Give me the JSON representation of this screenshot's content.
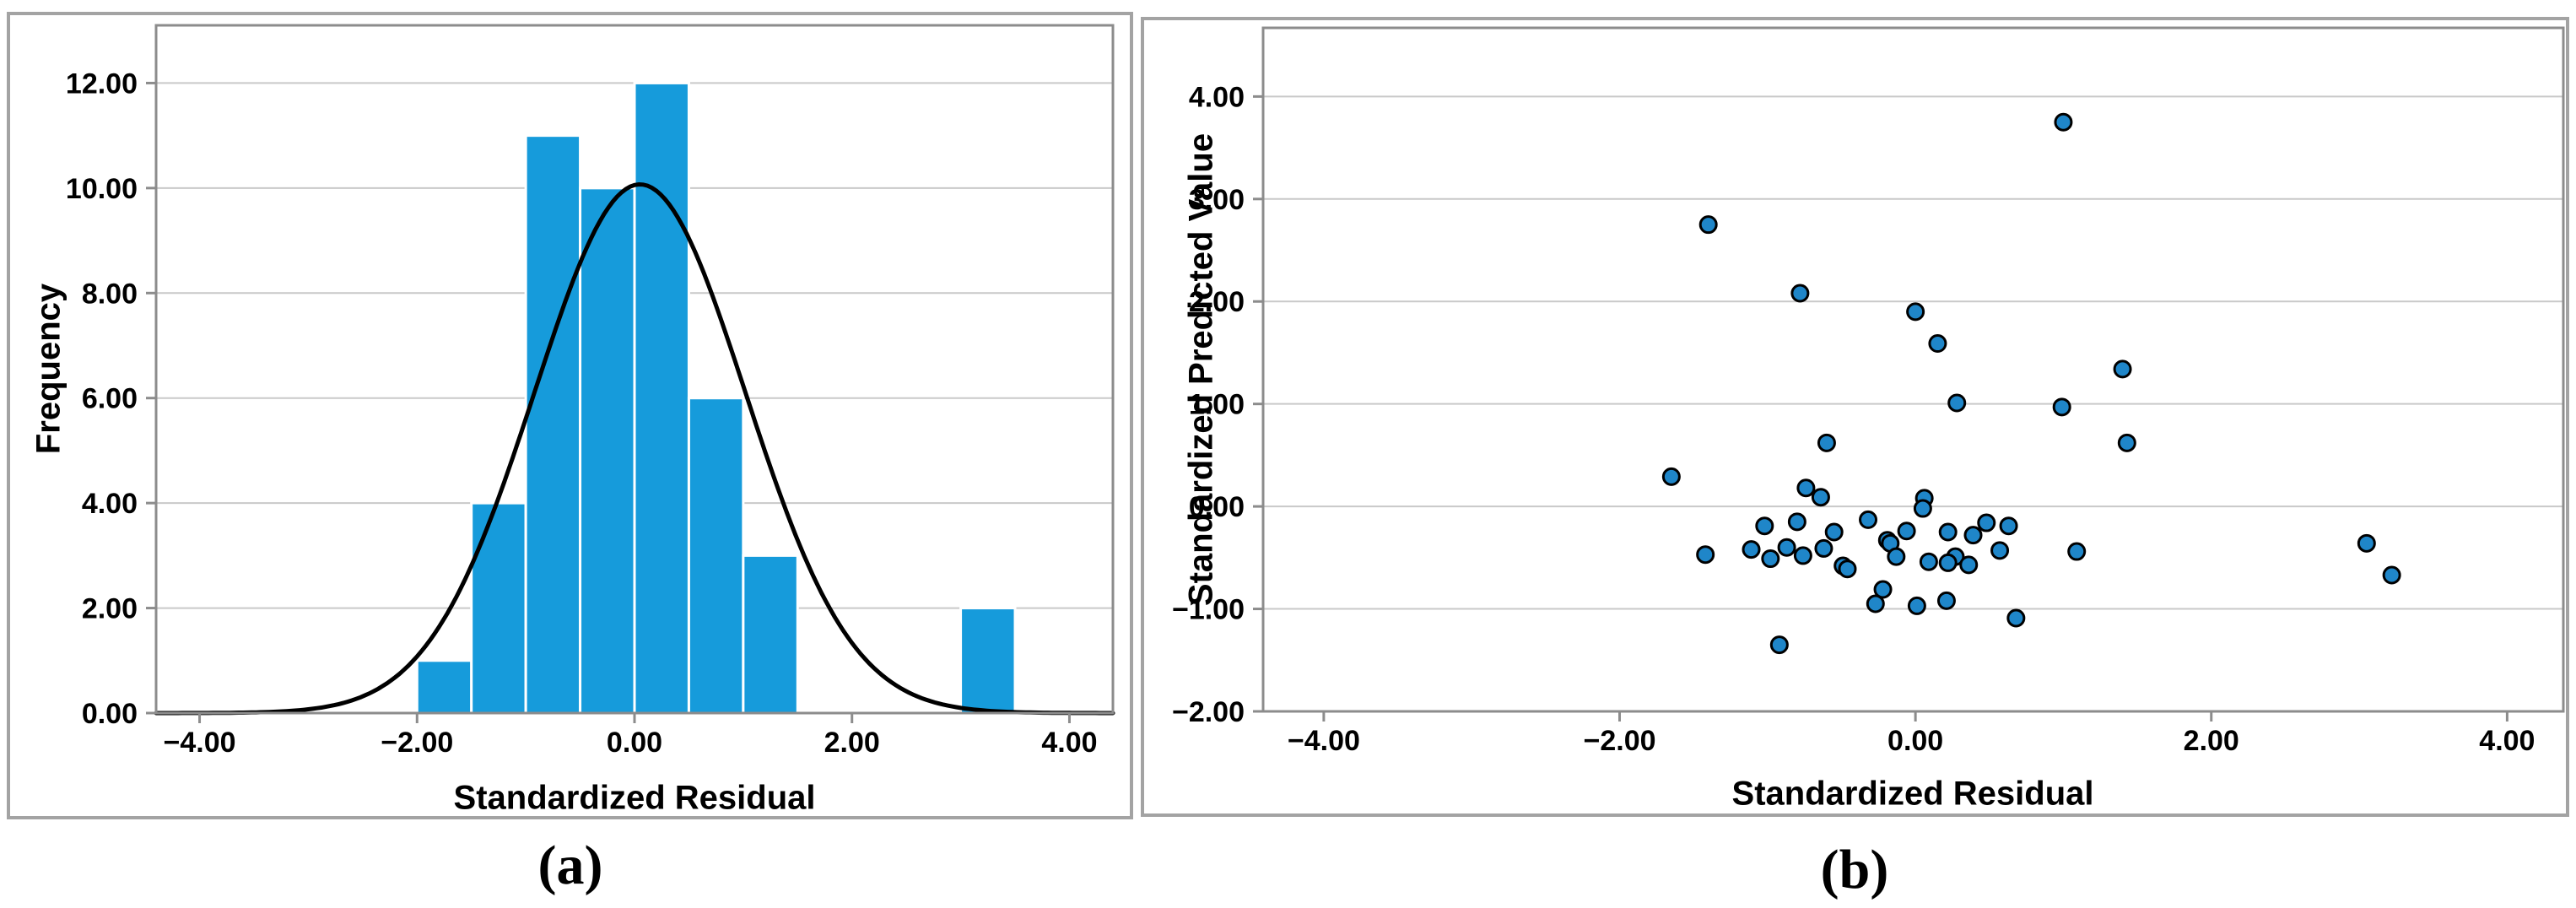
{
  "figure": {
    "background": "#ffffff",
    "panel_border_color": "#a3a3a3",
    "panel_a": {
      "caption": "(a)",
      "xlabel": "Standardized Residual",
      "ylabel": "Frequency"
    },
    "panel_b": {
      "caption": "(b)",
      "xlabel": "Standardized Residual",
      "ylabel": "Standardized Predicted Value"
    }
  },
  "chart_data": [
    {
      "panel": "a",
      "type": "bar",
      "subtype": "histogram-with-normal-curve",
      "title": "",
      "xlabel": "Standardized Residual",
      "ylabel": "Frequency",
      "xlim": [
        -4.4,
        4.4
      ],
      "ylim": [
        0,
        13.1
      ],
      "grid": "horizontal",
      "legend": "none",
      "xticks": [
        {
          "v": -4,
          "label": "−4.00"
        },
        {
          "v": -2,
          "label": "−2.00"
        },
        {
          "v": 0,
          "label": "0.00"
        },
        {
          "v": 2,
          "label": "2.00"
        },
        {
          "v": 4,
          "label": "4.00"
        }
      ],
      "yticks": [
        {
          "v": 0,
          "label": "0.00"
        },
        {
          "v": 2,
          "label": "2.00"
        },
        {
          "v": 4,
          "label": "4.00"
        },
        {
          "v": 6,
          "label": "6.00"
        },
        {
          "v": 8,
          "label": "8.00"
        },
        {
          "v": 10,
          "label": "10.00"
        },
        {
          "v": 12,
          "label": "12.00"
        }
      ],
      "bin_width": 0.5,
      "n_total": 49,
      "bins": [
        {
          "x0": -2.0,
          "x1": -1.5,
          "count": 1
        },
        {
          "x0": -1.5,
          "x1": -1.0,
          "count": 4
        },
        {
          "x0": -1.0,
          "x1": -0.5,
          "count": 11
        },
        {
          "x0": -0.5,
          "x1": 0.0,
          "count": 10
        },
        {
          "x0": 0.0,
          "x1": 0.5,
          "count": 12
        },
        {
          "x0": 0.5,
          "x1": 1.0,
          "count": 6
        },
        {
          "x0": 1.0,
          "x1": 1.5,
          "count": 3
        },
        {
          "x0": 3.0,
          "x1": 3.5,
          "count": 2
        }
      ],
      "normal_curve": {
        "mean": 0.05,
        "sd": 0.97,
        "peak": 10.07
      },
      "bar_color": "#169bdb",
      "bar_separator_color": "#ffffff",
      "curve_color": "#000000",
      "gridline_color": "#c9c9c9",
      "spine_color": "#8c8c8c"
    },
    {
      "panel": "b",
      "type": "scatter",
      "title": "",
      "xlabel": "Standardized Residual",
      "ylabel": "Standardized Predicted Value",
      "xlim": [
        -4.41,
        4.38
      ],
      "ylim": [
        -2.0,
        4.67
      ],
      "grid": "horizontal",
      "legend": "none",
      "xticks": [
        {
          "v": -4,
          "label": "−4.00"
        },
        {
          "v": -2,
          "label": "−2.00"
        },
        {
          "v": 0,
          "label": "0.00"
        },
        {
          "v": 2,
          "label": "2.00"
        },
        {
          "v": 4,
          "label": "4.00"
        }
      ],
      "yticks": [
        {
          "v": -2,
          "label": "−2.00"
        },
        {
          "v": -1,
          "label": "−1.00"
        },
        {
          "v": 0,
          "label": "0.00"
        },
        {
          "v": 1,
          "label": "1.00"
        },
        {
          "v": 2,
          "label": "2.00"
        },
        {
          "v": 3,
          "label": "3.00"
        },
        {
          "v": 4,
          "label": "4.00"
        }
      ],
      "marker": {
        "shape": "circle",
        "fill": "#1f86c9",
        "stroke": "#000000",
        "radius": 9.5,
        "stroke_width": 3
      },
      "gridline_color": "#c9c9c9",
      "spine_color": "#8c8c8c",
      "points": [
        [
          1.0,
          3.75
        ],
        [
          -1.4,
          2.75
        ],
        [
          -0.78,
          2.08
        ],
        [
          0.0,
          1.9
        ],
        [
          0.15,
          1.59
        ],
        [
          1.4,
          1.34
        ],
        [
          0.28,
          1.01
        ],
        [
          0.99,
          0.97
        ],
        [
          -0.6,
          0.62
        ],
        [
          1.43,
          0.62
        ],
        [
          -1.65,
          0.29
        ],
        [
          -0.74,
          0.18
        ],
        [
          -0.64,
          0.09
        ],
        [
          0.06,
          0.08
        ],
        [
          0.05,
          -0.02
        ],
        [
          -0.32,
          -0.13
        ],
        [
          -0.8,
          -0.15
        ],
        [
          -1.02,
          -0.19
        ],
        [
          -0.06,
          -0.24
        ],
        [
          -0.55,
          -0.25
        ],
        [
          0.22,
          -0.25
        ],
        [
          0.48,
          -0.16
        ],
        [
          0.63,
          -0.19
        ],
        [
          0.39,
          -0.28
        ],
        [
          -0.19,
          -0.33
        ],
        [
          -0.17,
          -0.36
        ],
        [
          -1.11,
          -0.42
        ],
        [
          -0.87,
          -0.4
        ],
        [
          -0.62,
          -0.41
        ],
        [
          -1.42,
          -0.47
        ],
        [
          -0.76,
          -0.48
        ],
        [
          -0.98,
          -0.51
        ],
        [
          -0.13,
          -0.49
        ],
        [
          0.27,
          -0.49
        ],
        [
          0.57,
          -0.43
        ],
        [
          1.09,
          -0.44
        ],
        [
          -0.49,
          -0.58
        ],
        [
          -0.46,
          -0.61
        ],
        [
          0.09,
          -0.54
        ],
        [
          0.22,
          -0.55
        ],
        [
          0.36,
          -0.57
        ],
        [
          3.05,
          -0.36
        ],
        [
          3.22,
          -0.67
        ],
        [
          -0.22,
          -0.81
        ],
        [
          -0.27,
          -0.95
        ],
        [
          0.01,
          -0.97
        ],
        [
          0.21,
          -0.92
        ],
        [
          0.68,
          -1.09
        ],
        [
          -0.92,
          -1.35
        ]
      ]
    }
  ]
}
